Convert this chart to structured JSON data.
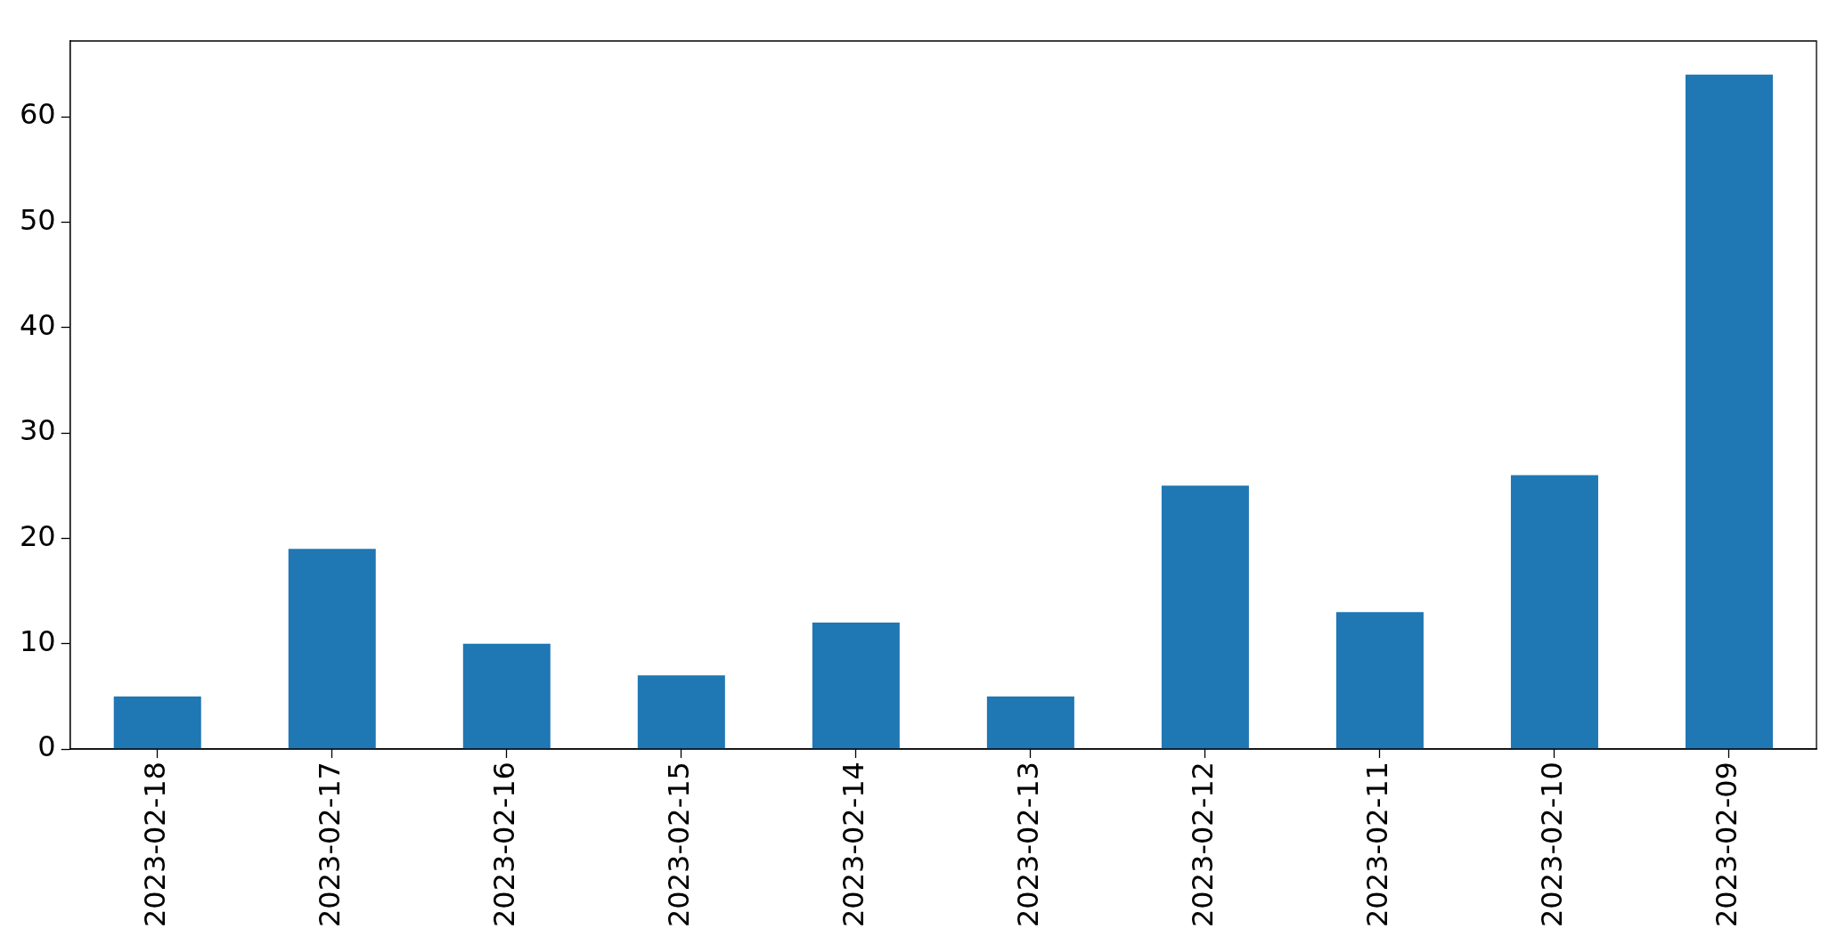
{
  "chart_data": {
    "type": "bar",
    "categories": [
      "2023-02-18",
      "2023-02-17",
      "2023-02-16",
      "2023-02-15",
      "2023-02-14",
      "2023-02-13",
      "2023-02-12",
      "2023-02-11",
      "2023-02-10",
      "2023-02-09"
    ],
    "values": [
      5,
      19,
      10,
      7,
      12,
      5,
      25,
      13,
      26,
      64
    ],
    "color": "#1f77b4",
    "ylim": [
      0,
      67.2
    ],
    "yticks": [
      0,
      10,
      20,
      30,
      40,
      50,
      60
    ],
    "grid": false,
    "legend": false
  }
}
